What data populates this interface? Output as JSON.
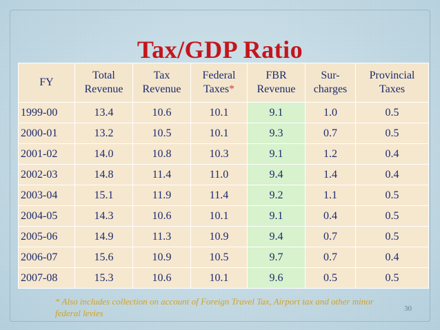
{
  "title": "Tax/GDP Ratio",
  "table": {
    "headers": [
      [
        "FY",
        ""
      ],
      [
        "Total",
        "Revenue"
      ],
      [
        "Tax",
        "Revenue"
      ],
      [
        "Federal",
        "Taxes*"
      ],
      [
        "FBR",
        "Revenue"
      ],
      [
        "Sur-",
        "charges"
      ],
      [
        "Provincial",
        "Taxes"
      ]
    ],
    "rows": [
      [
        "1999-00",
        "13.4",
        "10.6",
        "10.1",
        "9.1",
        "1.0",
        "0.5"
      ],
      [
        "2000-01",
        "13.2",
        "10.5",
        "10.1",
        "9.3",
        "0.7",
        "0.5"
      ],
      [
        "2001-02",
        "14.0",
        "10.8",
        "10.3",
        "9.1",
        "1.2",
        "0.4"
      ],
      [
        "2002-03",
        "14.8",
        "11.4",
        "11.0",
        "9.4",
        "1.4",
        "0.4"
      ],
      [
        "2003-04",
        "15.1",
        "11.9",
        "11.4",
        "9.2",
        "1.1",
        "0.5"
      ],
      [
        "2004-05",
        "14.3",
        "10.6",
        "10.1",
        "9.1",
        "0.4",
        "0.5"
      ],
      [
        "2005-06",
        "14.9",
        "11.3",
        "10.9",
        "9.4",
        "0.7",
        "0.5"
      ],
      [
        "2006-07",
        "15.6",
        "10.9",
        "10.5",
        "9.7",
        "0.7",
        "0.4"
      ],
      [
        "2007-08",
        "15.3",
        "10.6",
        "10.1",
        "9.6",
        "0.5",
        "0.5"
      ]
    ]
  },
  "footnote": "* Also includes collection on account of Foreign Travel Tax, Airport tax and other minor federal levies",
  "slide_number": "30",
  "colors": {
    "title": "#c4151c",
    "table_text": "#1a2a6e",
    "cell_bg": "#f6e7cf",
    "fbr_column_bg": "#d7f2cc",
    "footnote": "#d5a11e",
    "background": "#c8dde6"
  }
}
